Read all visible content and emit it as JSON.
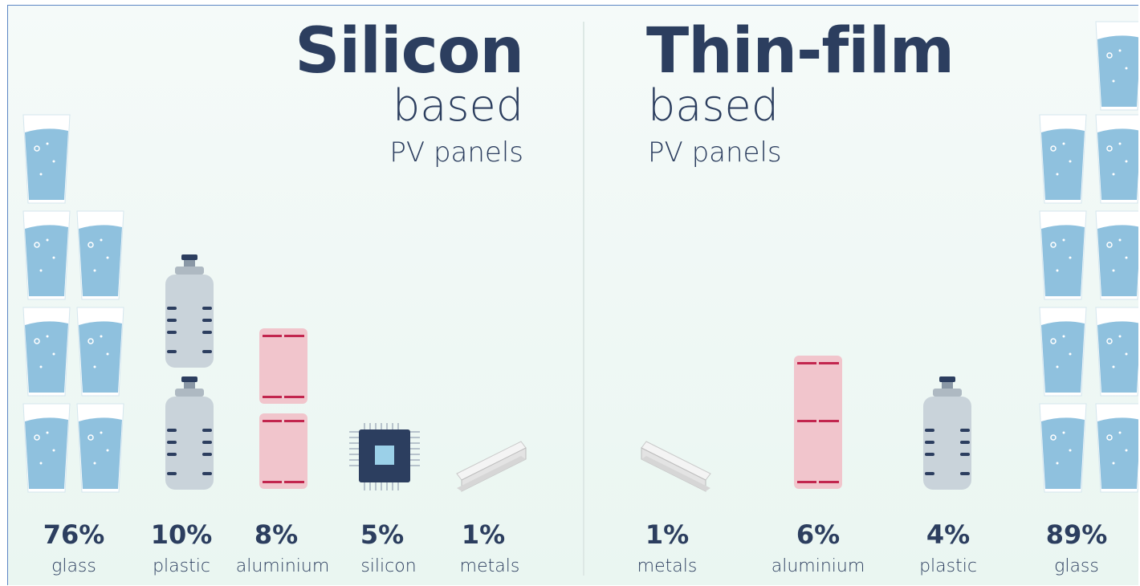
{
  "silicon": {
    "title": "Silicon",
    "subtitle": "based",
    "caption": "PV panels",
    "items": [
      {
        "percent": "76%",
        "label": "glass"
      },
      {
        "percent": "10%",
        "label": "plastic"
      },
      {
        "percent": "8%",
        "label": "aluminium"
      },
      {
        "percent": "5%",
        "label": "silicon"
      },
      {
        "percent": "1%",
        "label": "metals"
      }
    ]
  },
  "thinfilm": {
    "title": "Thin-film",
    "subtitle": "based",
    "caption": "PV panels",
    "items": [
      {
        "percent": "1%",
        "label": "metals"
      },
      {
        "percent": "6%",
        "label": "aluminium"
      },
      {
        "percent": "4%",
        "label": "plastic"
      },
      {
        "percent": "89%",
        "label": "glass"
      }
    ]
  },
  "chart_data": [
    {
      "type": "pictograph",
      "title": "Silicon based PV panels",
      "categories": [
        "glass",
        "plastic",
        "aluminium",
        "silicon",
        "metals"
      ],
      "values": [
        76,
        10,
        8,
        5,
        1
      ],
      "unit": "%",
      "icons": [
        "glass-of-water",
        "plastic-bottle",
        "aluminium-can",
        "silicon-chip",
        "steel-beam"
      ]
    },
    {
      "type": "pictograph",
      "title": "Thin-film based PV panels",
      "categories": [
        "metals",
        "aluminium",
        "plastic",
        "glass"
      ],
      "values": [
        1,
        6,
        4,
        89
      ],
      "unit": "%",
      "icons": [
        "steel-beam",
        "aluminium-can",
        "plastic-bottle",
        "glass-of-water"
      ]
    }
  ],
  "colors": {
    "text": "#2c3e5f",
    "water": "#8fc1de",
    "glass_rim": "#ffffff",
    "bottle": "#c9d3da",
    "bottle_mark": "#2c3e5f",
    "can": "#f1c5cc",
    "can_mark": "#c2264e",
    "chip": "#2c3e5f",
    "chip_core": "#9bd0e8",
    "beam": "#e3e3e3"
  }
}
